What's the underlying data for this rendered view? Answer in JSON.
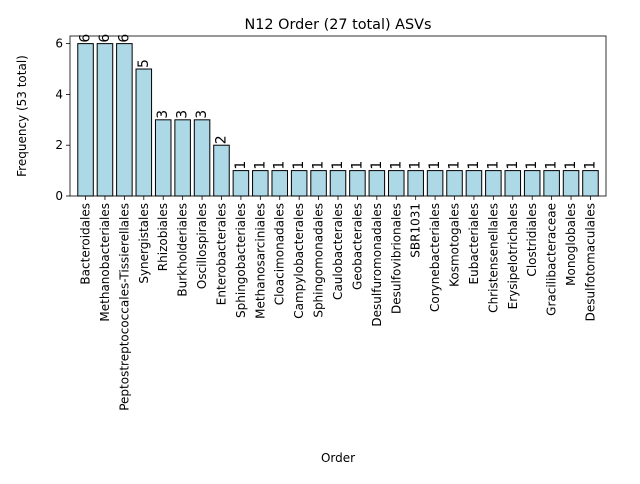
{
  "chart_data": {
    "type": "bar",
    "title": "N12 Order (27 total) ASVs",
    "xlabel": "Order",
    "ylabel": "Frequency (53 total)",
    "ylim": [
      0,
      6.3
    ],
    "yticks": [
      0,
      2,
      4,
      6
    ],
    "bar_color": "#add8e6",
    "edge_color": "#000000",
    "grid": false,
    "categories": [
      "Bacteroidales",
      "Methanobacteriales",
      "Peptostreptococcales-Tissierellales",
      "Synergistales",
      "Rhizobiales",
      "Burkholderiales",
      "Oscillospirales",
      "Enterobacterales",
      "Sphingobacteriales",
      "Methanosarciniales",
      "Cloacimonadales",
      "Campylobacterales",
      "Sphingomonadales",
      "Caulobacterales",
      "Geobacterales",
      "Desulfuromonadales",
      "Desulfovibrionales",
      "SBR1031",
      "Corynebacteriales",
      "Kosmotogales",
      "Eubacteriales",
      "Christensenellales",
      "Erysipelotrichales",
      "Clostridiales",
      "Gracilibacteraceae",
      "Monoglobales",
      "Desulfotomaculales"
    ],
    "values": [
      6,
      6,
      6,
      5,
      3,
      3,
      3,
      2,
      1,
      1,
      1,
      1,
      1,
      1,
      1,
      1,
      1,
      1,
      1,
      1,
      1,
      1,
      1,
      1,
      1,
      1,
      1
    ]
  }
}
